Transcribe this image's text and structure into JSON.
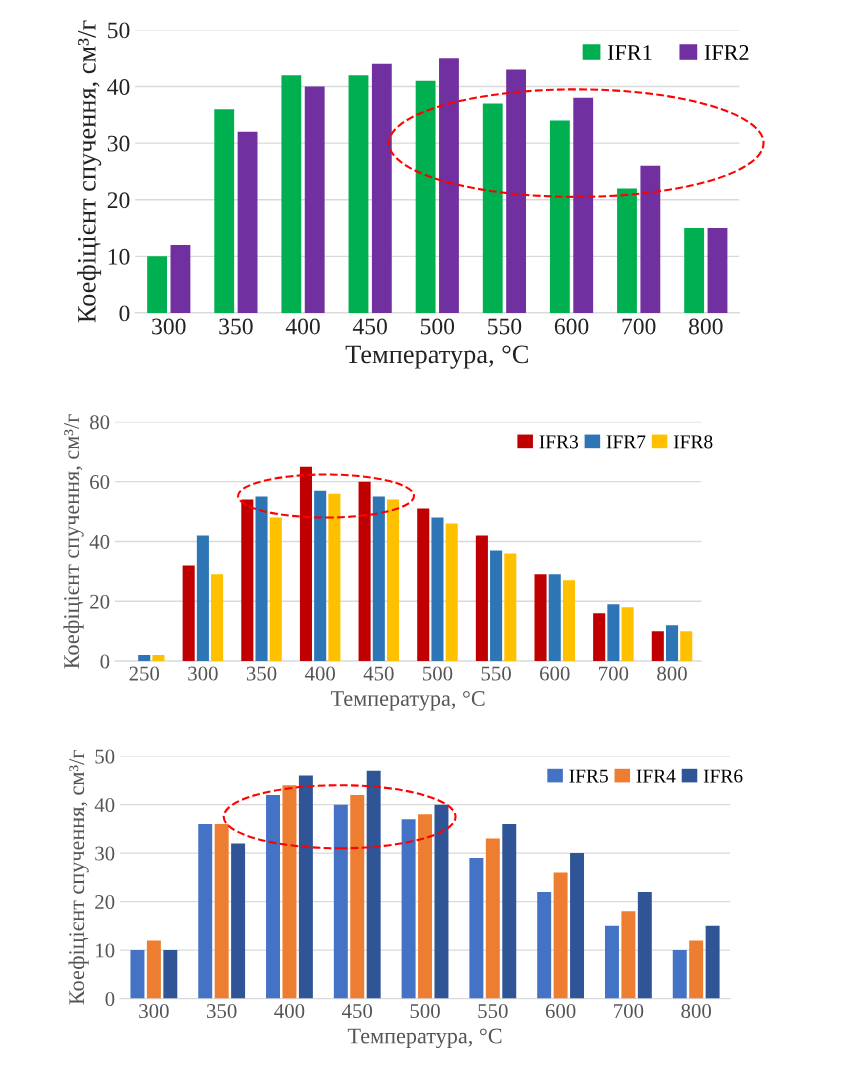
{
  "chart_data": [
    {
      "type": "bar",
      "xlabel": "Температура, °C",
      "ylabel": "Коефіцієнт спучення, см³/г",
      "categories": [
        "300",
        "350",
        "400",
        "450",
        "500",
        "550",
        "600",
        "700",
        "800"
      ],
      "series": [
        {
          "name": "IFR1",
          "color": "#00b050",
          "values": [
            10,
            36,
            42,
            42,
            41,
            37,
            34,
            22,
            15
          ]
        },
        {
          "name": "IFR2",
          "color": "#7030a0",
          "values": [
            12,
            32,
            40,
            44,
            45,
            43,
            38,
            26,
            15
          ]
        }
      ],
      "ylim": [
        0,
        50
      ],
      "yticks": [
        0,
        10,
        20,
        30,
        40,
        50
      ],
      "grid": "y",
      "legend": "top right"
    },
    {
      "type": "bar",
      "xlabel": "Температура, °C",
      "ylabel": "Коефіцієнт спучення, см³/г",
      "categories": [
        "250",
        "300",
        "350",
        "400",
        "450",
        "500",
        "550",
        "600",
        "700",
        "800"
      ],
      "series": [
        {
          "name": "IFR3",
          "color": "#c00000",
          "values": [
            null,
            32,
            54,
            65,
            60,
            51,
            42,
            29,
            16,
            10
          ]
        },
        {
          "name": "IFR7",
          "color": "#2e75b6",
          "values": [
            2,
            42,
            55,
            57,
            55,
            48,
            37,
            29,
            19,
            12
          ]
        },
        {
          "name": "IFR8",
          "color": "#ffc000",
          "values": [
            2,
            29,
            48,
            56,
            54,
            46,
            36,
            27,
            18,
            10
          ]
        }
      ],
      "ylim": [
        0,
        80
      ],
      "yticks": [
        0,
        20,
        40,
        60,
        80
      ],
      "grid": "y",
      "legend": "top right"
    },
    {
      "type": "bar",
      "xlabel": "Температура, °C",
      "ylabel": "Коефіцієнт спучення, см³/г",
      "categories": [
        "300",
        "350",
        "400",
        "450",
        "500",
        "550",
        "600",
        "700",
        "800"
      ],
      "series": [
        {
          "name": "IFR5",
          "color": "#4472c4",
          "values": [
            10,
            36,
            42,
            40,
            37,
            29,
            22,
            15,
            10
          ]
        },
        {
          "name": "IFR4",
          "color": "#ed7d31",
          "values": [
            12,
            36,
            44,
            42,
            38,
            33,
            26,
            18,
            12
          ]
        },
        {
          "name": "IFR6",
          "color": "#2f5597",
          "values": [
            10,
            32,
            46,
            47,
            40,
            36,
            30,
            22,
            15
          ]
        }
      ],
      "ylim": [
        0,
        50
      ],
      "yticks": [
        0,
        10,
        20,
        30,
        40,
        50
      ],
      "grid": "y",
      "legend": "top right"
    }
  ]
}
